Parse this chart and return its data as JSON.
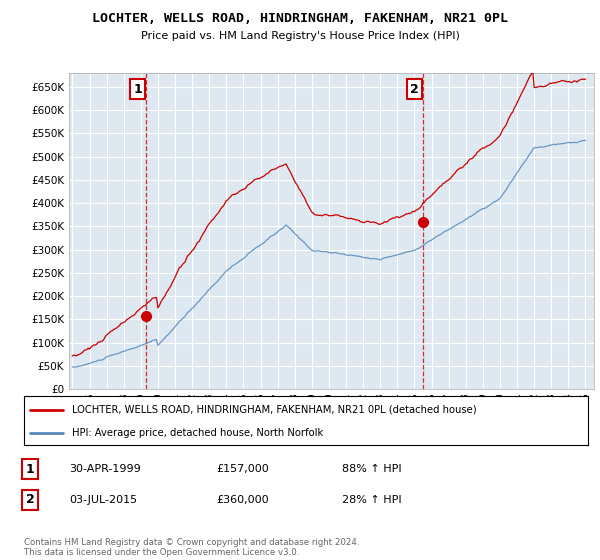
{
  "title": "LOCHTER, WELLS ROAD, HINDRINGHAM, FAKENHAM, NR21 0PL",
  "subtitle": "Price paid vs. HM Land Registry's House Price Index (HPI)",
  "legend_line1": "LOCHTER, WELLS ROAD, HINDRINGHAM, FAKENHAM, NR21 0PL (detached house)",
  "legend_line2": "HPI: Average price, detached house, North Norfolk",
  "annotation1_date": "30-APR-1999",
  "annotation1_price": "£157,000",
  "annotation1_hpi": "88% ↑ HPI",
  "annotation2_date": "03-JUL-2015",
  "annotation2_price": "£360,000",
  "annotation2_hpi": "28% ↑ HPI",
  "footer": "Contains HM Land Registry data © Crown copyright and database right 2024.\nThis data is licensed under the Open Government Licence v3.0.",
  "red_color": "#cc0000",
  "blue_color": "#5588bb",
  "marker1_x": 1999.33,
  "marker1_y": 157000,
  "marker2_x": 2015.5,
  "marker2_y": 360000,
  "vline1_x": 1999.33,
  "vline2_x": 2015.5,
  "ylim": [
    0,
    680000
  ],
  "xlim_start": 1994.8,
  "xlim_end": 2025.5,
  "chart_bg": "#dde8f0",
  "grid_color": "#ffffff",
  "outer_bg": "#ffffff"
}
